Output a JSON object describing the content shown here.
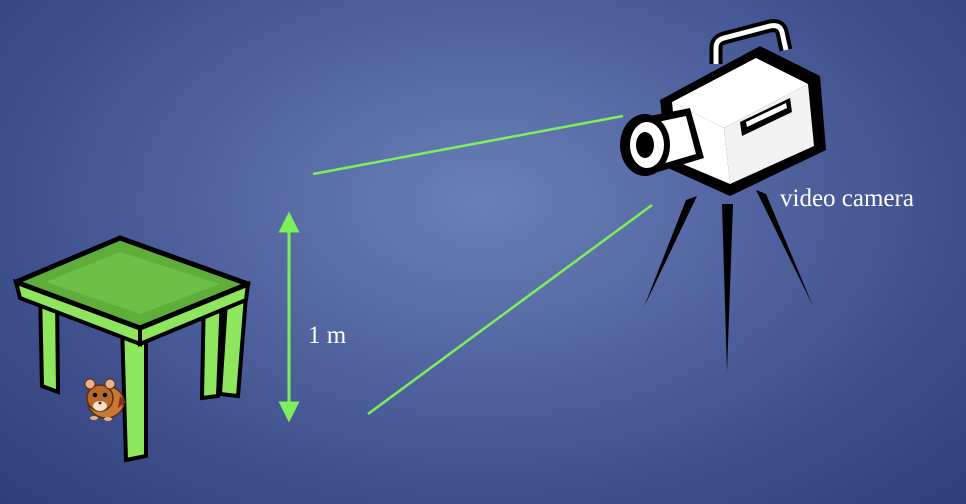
{
  "diagram": {
    "camera_label": "video camera",
    "distance_label": "1 m"
  },
  "colors": {
    "background": "#5467a3",
    "guide_line": "#7cf05a",
    "table_top": "#5fae3c",
    "table_legs": "#8ee65e",
    "outline": "#000000",
    "camera_body": "#ffffff"
  },
  "icons": {
    "camera": "video-camera-icon",
    "table": "table-icon",
    "rodent": "hamster-icon"
  }
}
